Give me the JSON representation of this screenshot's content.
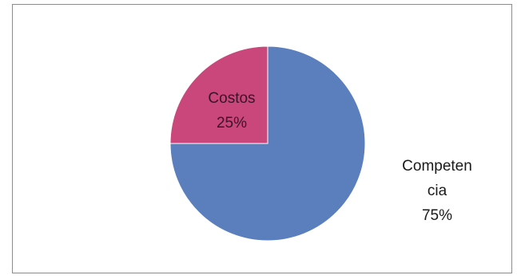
{
  "chart_data": {
    "type": "pie",
    "title": "",
    "slices": [
      {
        "label": "Costos",
        "value": 25,
        "value_label": "25%",
        "color": "#c9477a"
      },
      {
        "label": "Competencia",
        "value": 75,
        "value_label": "75%",
        "color": "#5b7fbd"
      }
    ],
    "label_lines": {
      "costos": [
        "Costos",
        "25%"
      ],
      "competencia": [
        "Competen",
        "cia",
        "75%"
      ]
    }
  }
}
